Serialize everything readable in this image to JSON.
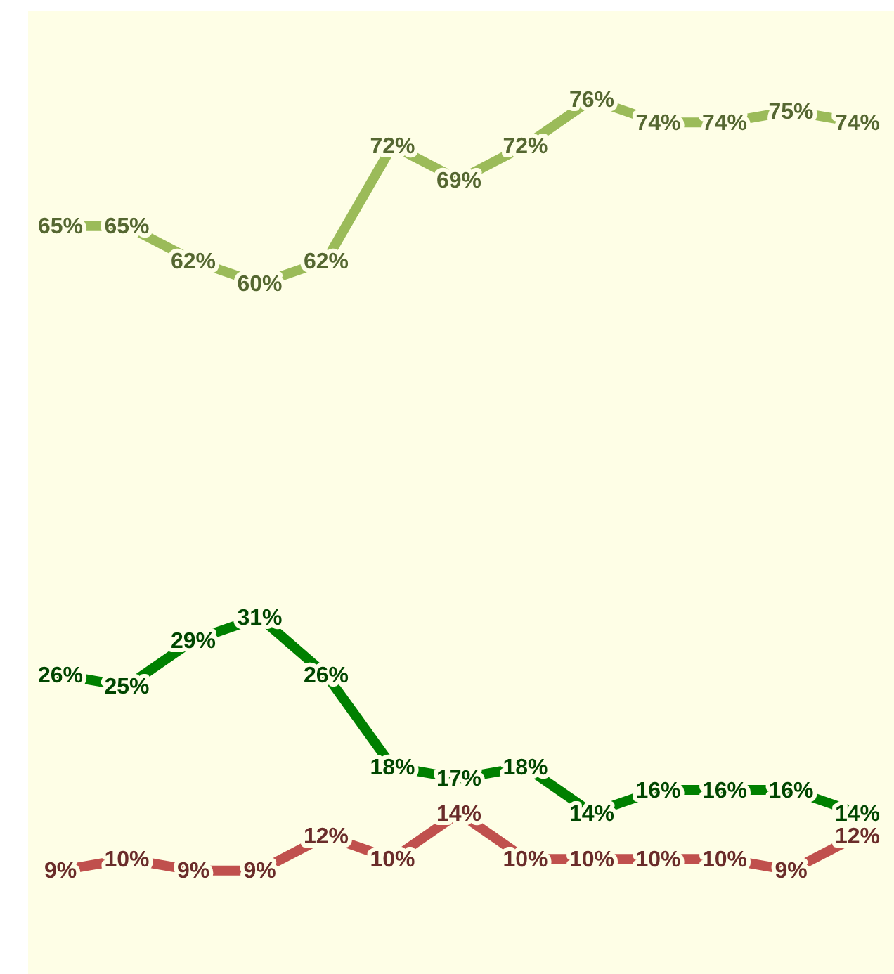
{
  "chart_data": {
    "type": "line",
    "categories": [
      null,
      null,
      null,
      null,
      null,
      null,
      null,
      null,
      null,
      null,
      null,
      null,
      null
    ],
    "marker": "none",
    "line_style": "solid",
    "legend": false,
    "grid": false,
    "tick_labels": false,
    "series": [
      {
        "color": "#9bbb59",
        "values": [
          65,
          65,
          62,
          60,
          62,
          72,
          69,
          72,
          76,
          74,
          74,
          75,
          74
        ],
        "value_labels": [
          "65%",
          "65%",
          "62%",
          "60%",
          "62%",
          "72%",
          "69%",
          "72%",
          "76%",
          "74%",
          "74%",
          "75%",
          "74%"
        ]
      },
      {
        "color": "#008000",
        "values": [
          26,
          25,
          29,
          31,
          26,
          18,
          17,
          18,
          14,
          16,
          16,
          16,
          14
        ],
        "value_labels": [
          "26%",
          "25%",
          "29%",
          "31%",
          "26%",
          "18%",
          "17%",
          "18%",
          "14%",
          "16%",
          "16%",
          "16%",
          "14%"
        ]
      },
      {
        "color": "#c0504d",
        "values": [
          9,
          10,
          9,
          9,
          12,
          10,
          14,
          10,
          10,
          10,
          10,
          9,
          12
        ],
        "value_labels": [
          "9%",
          "10%",
          "9%",
          "9%",
          "12%",
          "10%",
          "14%",
          "10%",
          "10%",
          "10%",
          "10%",
          "9%",
          "12%"
        ]
      }
    ]
  }
}
